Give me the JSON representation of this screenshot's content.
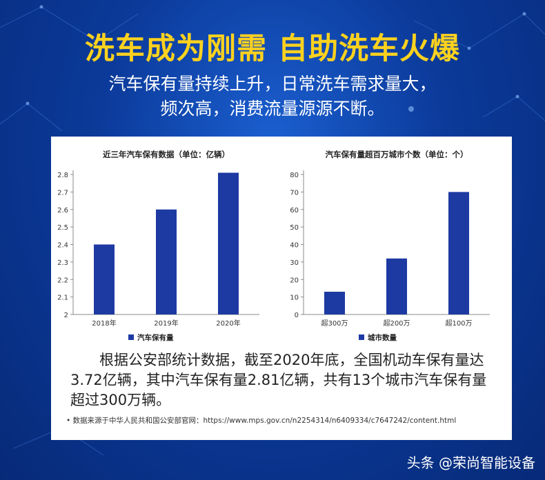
{
  "headline": "洗车成为刚需 自助洗车火爆",
  "subtitle_line1": "汽车保有量持续上升，日常洗车需求量大，",
  "subtitle_line2": "频次高，消费流量源源不断。",
  "colors": {
    "bar": "#1d3aa3",
    "headline": "#ffd21e"
  },
  "chart_data": [
    {
      "type": "bar",
      "title": "近三年汽车保有数据（单位：亿辆）",
      "categories": [
        "2018年",
        "2019年",
        "2020年"
      ],
      "series": [
        {
          "name": "汽车保有量",
          "values": [
            2.4,
            2.6,
            2.81
          ]
        }
      ],
      "ylim": [
        2,
        2.8
      ],
      "yticks": [
        "2",
        "2.1",
        "2.2",
        "2.3",
        "2.4",
        "2.5",
        "2.6",
        "2.7",
        "2.8"
      ],
      "legend_position": "bottom"
    },
    {
      "type": "bar",
      "title": "汽车保有量超百万城市个数（单位：个）",
      "categories": [
        "超300万",
        "超200万",
        "超100万"
      ],
      "series": [
        {
          "name": "城市数量",
          "values": [
            13,
            32,
            70
          ]
        }
      ],
      "ylim": [
        0,
        80
      ],
      "yticks": [
        "0",
        "10",
        "20",
        "30",
        "40",
        "50",
        "60",
        "70",
        "80"
      ],
      "legend_position": "bottom"
    }
  ],
  "note": "根据公安部统计数据，截至2020年底，全国机动车保有量达3.72亿辆，其中汽车保有量2.81亿辆，共有13个城市汽车保有量超过300万辆。",
  "source": "• 数据来源于中华人民共和国公安部官网：https://www.mps.gov.cn/n2254314/n6409334/c7647242/content.html",
  "watermark": "头条 @荣尚智能设备"
}
